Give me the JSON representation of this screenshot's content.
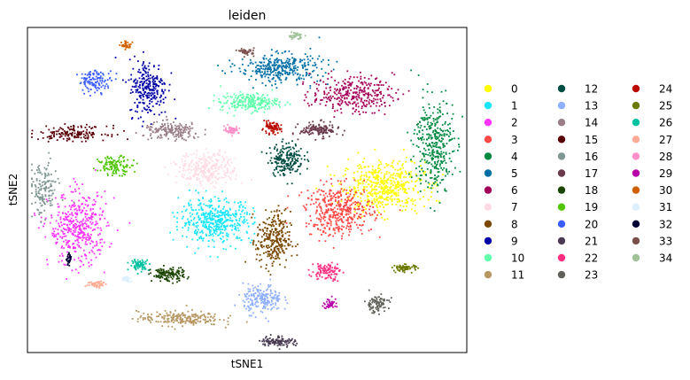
{
  "chart_data": {
    "type": "scatter",
    "title": "leiden",
    "xlabel": "tSNE1",
    "ylabel": "tSNE2",
    "xlim": [
      -1,
      1
    ],
    "ylim": [
      -1,
      1
    ],
    "grid": false,
    "x_ticks": [],
    "y_ticks": [],
    "legend_placement": "right, outside plot, 3 columns",
    "legend": [
      {
        "label": "0",
        "color": "#ffff00"
      },
      {
        "label": "1",
        "color": "#1ce6ff"
      },
      {
        "label": "2",
        "color": "#ff34ff"
      },
      {
        "label": "3",
        "color": "#ff4a46"
      },
      {
        "label": "4",
        "color": "#008941"
      },
      {
        "label": "5",
        "color": "#006fa6"
      },
      {
        "label": "6",
        "color": "#a30059"
      },
      {
        "label": "7",
        "color": "#ffdbe5"
      },
      {
        "label": "8",
        "color": "#7a4900"
      },
      {
        "label": "9",
        "color": "#0000a6"
      },
      {
        "label": "10",
        "color": "#63ffac"
      },
      {
        "label": "11",
        "color": "#b79762"
      },
      {
        "label": "12",
        "color": "#004d43"
      },
      {
        "label": "13",
        "color": "#8fb0ff"
      },
      {
        "label": "14",
        "color": "#997d87"
      },
      {
        "label": "15",
        "color": "#5a0007"
      },
      {
        "label": "16",
        "color": "#809693"
      },
      {
        "label": "17",
        "color": "#6a3a4c"
      },
      {
        "label": "18",
        "color": "#1b4400"
      },
      {
        "label": "19",
        "color": "#4fc601"
      },
      {
        "label": "20",
        "color": "#3b5dff"
      },
      {
        "label": "21",
        "color": "#4a3b53"
      },
      {
        "label": "22",
        "color": "#ff2f80"
      },
      {
        "label": "23",
        "color": "#61615a"
      },
      {
        "label": "24",
        "color": "#ba0900"
      },
      {
        "label": "25",
        "color": "#6b7900"
      },
      {
        "label": "26",
        "color": "#00c2a0"
      },
      {
        "label": "27",
        "color": "#ffaa92"
      },
      {
        "label": "28",
        "color": "#ff90c9"
      },
      {
        "label": "29",
        "color": "#b903aa"
      },
      {
        "label": "30",
        "color": "#d16100"
      },
      {
        "label": "31",
        "color": "#ddefff"
      },
      {
        "label": "32",
        "color": "#000035"
      },
      {
        "label": "33",
        "color": "#7b4f4b"
      },
      {
        "label": "34",
        "color": "#a1c299"
      }
    ],
    "clusters": [
      {
        "label": "0",
        "center": [
          0.62,
          0.02
        ],
        "spread": [
          0.17,
          0.14
        ],
        "n": 520
      },
      {
        "label": "1",
        "center": [
          -0.14,
          -0.19
        ],
        "spread": [
          0.15,
          0.12
        ],
        "n": 460
      },
      {
        "label": "2",
        "center": [
          -0.77,
          -0.24
        ],
        "spread": [
          0.12,
          0.2
        ],
        "n": 420
      },
      {
        "label": "3",
        "center": [
          0.42,
          -0.13
        ],
        "spread": [
          0.14,
          0.14
        ],
        "n": 420
      },
      {
        "label": "4",
        "center": [
          0.85,
          0.28
        ],
        "spread": [
          0.08,
          0.26
        ],
        "n": 360
      },
      {
        "label": "5",
        "center": [
          0.15,
          0.75
        ],
        "spread": [
          0.17,
          0.08
        ],
        "n": 340
      },
      {
        "label": "6",
        "center": [
          0.48,
          0.59
        ],
        "spread": [
          0.17,
          0.1
        ],
        "n": 320
      },
      {
        "label": "7",
        "center": [
          -0.18,
          0.13
        ],
        "spread": [
          0.12,
          0.09
        ],
        "n": 300
      },
      {
        "label": "8",
        "center": [
          0.12,
          -0.31
        ],
        "spread": [
          0.07,
          0.16
        ],
        "n": 280
      },
      {
        "label": "9",
        "center": [
          -0.45,
          0.63
        ],
        "spread": [
          0.08,
          0.16
        ],
        "n": 260
      },
      {
        "label": "10",
        "center": [
          0.01,
          0.54
        ],
        "spread": [
          0.12,
          0.05
        ],
        "n": 240
      },
      {
        "label": "11",
        "center": [
          -0.31,
          -0.79
        ],
        "spread": [
          0.17,
          0.04
        ],
        "n": 220
      },
      {
        "label": "12",
        "center": [
          0.18,
          0.19
        ],
        "spread": [
          0.07,
          0.09
        ],
        "n": 200
      },
      {
        "label": "13",
        "center": [
          0.07,
          -0.67
        ],
        "spread": [
          0.08,
          0.08
        ],
        "n": 200
      },
      {
        "label": "14",
        "center": [
          -0.34,
          0.36
        ],
        "spread": [
          0.12,
          0.05
        ],
        "n": 180
      },
      {
        "label": "15",
        "center": [
          -0.79,
          0.35
        ],
        "spread": [
          0.14,
          0.04
        ],
        "n": 160
      },
      {
        "label": "16",
        "center": [
          -0.93,
          0.0
        ],
        "spread": [
          0.06,
          0.15
        ],
        "n": 150
      },
      {
        "label": "17",
        "center": [
          0.33,
          0.37
        ],
        "spread": [
          0.08,
          0.04
        ],
        "n": 140
      },
      {
        "label": "18",
        "center": [
          -0.36,
          -0.52
        ],
        "spread": [
          0.07,
          0.04
        ],
        "n": 130
      },
      {
        "label": "19",
        "center": [
          -0.6,
          0.15
        ],
        "spread": [
          0.07,
          0.05
        ],
        "n": 120
      },
      {
        "label": "20",
        "center": [
          -0.69,
          0.67
        ],
        "spread": [
          0.07,
          0.06
        ],
        "n": 120
      },
      {
        "label": "21",
        "center": [
          0.14,
          -0.93
        ],
        "spread": [
          0.07,
          0.03
        ],
        "n": 110
      },
      {
        "label": "22",
        "center": [
          0.36,
          -0.5
        ],
        "spread": [
          0.06,
          0.05
        ],
        "n": 100
      },
      {
        "label": "23",
        "center": [
          0.59,
          -0.7
        ],
        "spread": [
          0.05,
          0.05
        ],
        "n": 90
      },
      {
        "label": "24",
        "center": [
          0.11,
          0.38
        ],
        "spread": [
          0.04,
          0.03
        ],
        "n": 80
      },
      {
        "label": "25",
        "center": [
          0.72,
          -0.48
        ],
        "spread": [
          0.05,
          0.02
        ],
        "n": 70
      },
      {
        "label": "26",
        "center": [
          -0.49,
          -0.46
        ],
        "spread": [
          0.04,
          0.03
        ],
        "n": 70
      },
      {
        "label": "27",
        "center": [
          -0.68,
          -0.58
        ],
        "spread": [
          0.04,
          0.02
        ],
        "n": 55
      },
      {
        "label": "28",
        "center": [
          -0.07,
          0.37
        ],
        "spread": [
          0.03,
          0.02
        ],
        "n": 55
      },
      {
        "label": "29",
        "center": [
          0.38,
          -0.7
        ],
        "spread": [
          0.03,
          0.03
        ],
        "n": 45
      },
      {
        "label": "30",
        "center": [
          -0.55,
          0.89
        ],
        "spread": [
          0.02,
          0.02
        ],
        "n": 40
      },
      {
        "label": "31",
        "center": [
          -0.55,
          -0.55
        ],
        "spread": [
          0.02,
          0.02
        ],
        "n": 35
      },
      {
        "label": "32",
        "center": [
          -0.81,
          -0.43
        ],
        "spread": [
          0.01,
          0.03
        ],
        "n": 30
      },
      {
        "label": "33",
        "center": [
          0.0,
          0.85
        ],
        "spread": [
          0.03,
          0.02
        ],
        "n": 40
      },
      {
        "label": "34",
        "center": [
          0.22,
          0.95
        ],
        "spread": [
          0.03,
          0.02
        ],
        "n": 40
      }
    ]
  }
}
